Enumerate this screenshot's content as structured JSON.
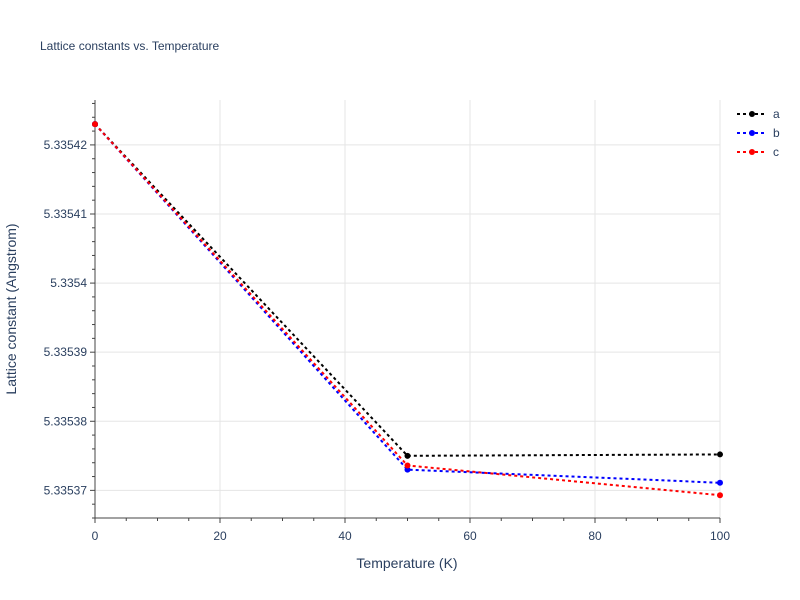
{
  "chart_data": {
    "type": "line",
    "title": "Lattice constants vs. Temperature",
    "xlabel": "Temperature (K)",
    "ylabel": "Lattice constant (Angstrom)",
    "xlim": [
      0,
      100
    ],
    "ylim": [
      5.335366,
      5.3354265
    ],
    "x_ticks": [
      0,
      20,
      40,
      60,
      80,
      100
    ],
    "x_tick_labels": [
      "0",
      "20",
      "40",
      "60",
      "80",
      "100"
    ],
    "y_ticks": [
      5.33537,
      5.33538,
      5.33539,
      5.3354,
      5.33541,
      5.33542
    ],
    "y_tick_labels": [
      "5.33537",
      "5.33538",
      "5.33539",
      "5.3354",
      "5.33541",
      "5.33542"
    ],
    "grid": true,
    "legend_position": "top-right",
    "series": [
      {
        "name": "a",
        "color": "#000000",
        "x": [
          0,
          50,
          100
        ],
        "y": [
          5.335423,
          5.335375,
          5.3353752
        ]
      },
      {
        "name": "b",
        "color": "#0000ff",
        "x": [
          0,
          50,
          100
        ],
        "y": [
          5.335423,
          5.335373,
          5.3353711
        ]
      },
      {
        "name": "c",
        "color": "#ff0000",
        "x": [
          0,
          50,
          100
        ],
        "y": [
          5.335423,
          5.3353736,
          5.3353693
        ]
      }
    ]
  }
}
